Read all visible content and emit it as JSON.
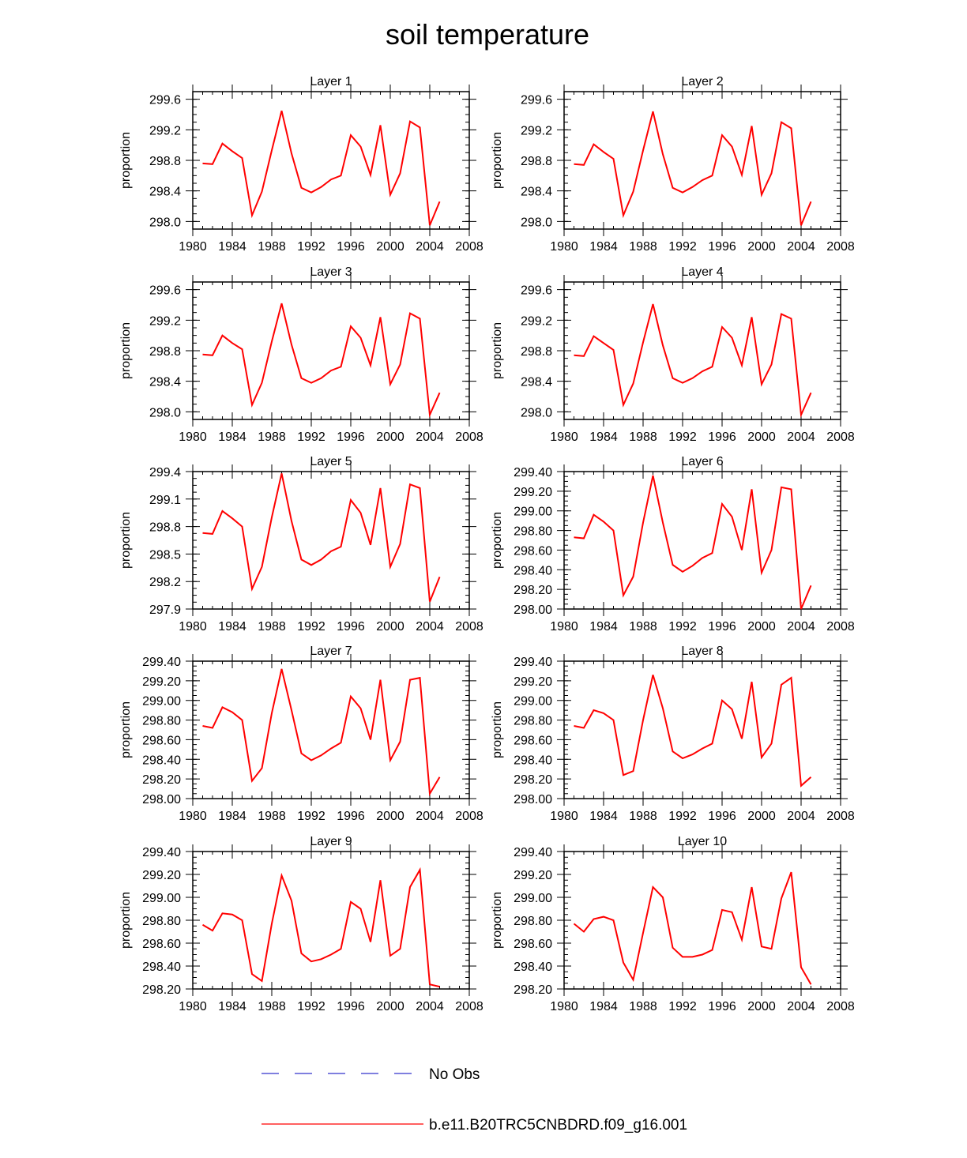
{
  "title": "soil temperature",
  "legend": [
    {
      "label": "No Obs",
      "color": "#3333cc",
      "style": "dashed"
    },
    {
      "label": "b.e11.B20TRC5CNBDRD.f09_g16.001",
      "color": "#ff0000",
      "style": "solid"
    }
  ],
  "series_color": "#ff0000",
  "chart_data": [
    {
      "type": "line",
      "title": "Layer 1",
      "ylabel": "proportion",
      "xlim": [
        1980,
        2008
      ],
      "xticks": [
        "1980",
        "1984",
        "1988",
        "1992",
        "1996",
        "2000",
        "2004",
        "2008"
      ],
      "ylim": [
        297.9,
        299.7
      ],
      "yticks": [
        "298.0",
        "298.4",
        "298.8",
        "299.2",
        "299.6"
      ],
      "x": [
        1981,
        1982,
        1983,
        1984,
        1985,
        1986,
        1987,
        1988,
        1989,
        1990,
        1991,
        1992,
        1993,
        1994,
        1995,
        1996,
        1997,
        1998,
        1999,
        2000,
        2001,
        2002,
        2003,
        2004,
        2005
      ],
      "values": [
        298.76,
        298.75,
        299.02,
        298.92,
        298.83,
        298.08,
        298.39,
        298.93,
        299.45,
        298.89,
        298.44,
        298.38,
        298.45,
        298.55,
        298.6,
        299.13,
        298.98,
        298.61,
        299.26,
        298.35,
        298.63,
        299.31,
        299.23,
        297.95,
        298.26
      ]
    },
    {
      "type": "line",
      "title": "Layer 2",
      "ylabel": "proportion",
      "xlim": [
        1980,
        2008
      ],
      "xticks": [
        "1980",
        "1984",
        "1988",
        "1992",
        "1996",
        "2000",
        "2004",
        "2008"
      ],
      "ylim": [
        297.9,
        299.7
      ],
      "yticks": [
        "298.0",
        "298.4",
        "298.8",
        "299.2",
        "299.6"
      ],
      "x": [
        1981,
        1982,
        1983,
        1984,
        1985,
        1986,
        1987,
        1988,
        1989,
        1990,
        1991,
        1992,
        1993,
        1994,
        1995,
        1996,
        1997,
        1998,
        1999,
        2000,
        2001,
        2002,
        2003,
        2004,
        2005
      ],
      "values": [
        298.75,
        298.74,
        299.01,
        298.91,
        298.82,
        298.08,
        298.39,
        298.93,
        299.44,
        298.88,
        298.44,
        298.38,
        298.45,
        298.54,
        298.6,
        299.13,
        298.98,
        298.61,
        299.25,
        298.35,
        298.63,
        299.3,
        299.22,
        297.95,
        298.26
      ]
    },
    {
      "type": "line",
      "title": "Layer 3",
      "ylabel": "proportion",
      "xlim": [
        1980,
        2008
      ],
      "xticks": [
        "1980",
        "1984",
        "1988",
        "1992",
        "1996",
        "2000",
        "2004",
        "2008"
      ],
      "ylim": [
        297.9,
        299.7
      ],
      "yticks": [
        "298.0",
        "298.4",
        "298.8",
        "299.2",
        "299.6"
      ],
      "x": [
        1981,
        1982,
        1983,
        1984,
        1985,
        1986,
        1987,
        1988,
        1989,
        1990,
        1991,
        1992,
        1993,
        1994,
        1995,
        1996,
        1997,
        1998,
        1999,
        2000,
        2001,
        2002,
        2003,
        2004,
        2005
      ],
      "values": [
        298.75,
        298.74,
        299.0,
        298.9,
        298.82,
        298.09,
        298.38,
        298.92,
        299.42,
        298.88,
        298.44,
        298.38,
        298.44,
        298.54,
        298.59,
        299.12,
        298.97,
        298.61,
        299.24,
        298.36,
        298.62,
        299.29,
        299.22,
        297.96,
        298.25
      ]
    },
    {
      "type": "line",
      "title": "Layer 4",
      "ylabel": "proportion",
      "xlim": [
        1980,
        2008
      ],
      "xticks": [
        "1980",
        "1984",
        "1988",
        "1992",
        "1996",
        "2000",
        "2004",
        "2008"
      ],
      "ylim": [
        297.9,
        299.7
      ],
      "yticks": [
        "298.0",
        "298.4",
        "298.8",
        "299.2",
        "299.6"
      ],
      "x": [
        1981,
        1982,
        1983,
        1984,
        1985,
        1986,
        1987,
        1988,
        1989,
        1990,
        1991,
        1992,
        1993,
        1994,
        1995,
        1996,
        1997,
        1998,
        1999,
        2000,
        2001,
        2002,
        2003,
        2004,
        2005
      ],
      "values": [
        298.74,
        298.73,
        298.99,
        298.9,
        298.81,
        298.09,
        298.37,
        298.91,
        299.41,
        298.87,
        298.44,
        298.38,
        298.44,
        298.53,
        298.59,
        299.11,
        298.97,
        298.61,
        299.24,
        298.36,
        298.62,
        299.28,
        299.22,
        297.96,
        298.25
      ]
    },
    {
      "type": "line",
      "title": "Layer 5",
      "ylabel": "proportion",
      "xlim": [
        1980,
        2008
      ],
      "xticks": [
        "1980",
        "1984",
        "1988",
        "1992",
        "1996",
        "2000",
        "2004",
        "2008"
      ],
      "ylim": [
        297.9,
        299.4
      ],
      "yticks": [
        "297.9",
        "298.2",
        "298.5",
        "298.8",
        "299.1",
        "299.4"
      ],
      "x": [
        1981,
        1982,
        1983,
        1984,
        1985,
        1986,
        1987,
        1988,
        1989,
        1990,
        1991,
        1992,
        1993,
        1994,
        1995,
        1996,
        1997,
        1998,
        1999,
        2000,
        2001,
        2002,
        2003,
        2004,
        2005
      ],
      "values": [
        298.73,
        298.72,
        298.97,
        298.89,
        298.8,
        298.12,
        298.36,
        298.9,
        299.38,
        298.86,
        298.44,
        298.38,
        298.44,
        298.53,
        298.58,
        299.09,
        298.95,
        298.6,
        299.22,
        298.36,
        298.61,
        299.26,
        299.22,
        297.98,
        298.25
      ]
    },
    {
      "type": "line",
      "title": "Layer 6",
      "ylabel": "proportion",
      "xlim": [
        1980,
        2008
      ],
      "xticks": [
        "1980",
        "1984",
        "1988",
        "1992",
        "1996",
        "2000",
        "2004",
        "2008"
      ],
      "ylim": [
        298.0,
        299.4
      ],
      "yticks": [
        "298.00",
        "298.20",
        "298.40",
        "298.60",
        "298.80",
        "299.00",
        "299.20",
        "299.40"
      ],
      "x": [
        1981,
        1982,
        1983,
        1984,
        1985,
        1986,
        1987,
        1988,
        1989,
        1990,
        1991,
        1992,
        1993,
        1994,
        1995,
        1996,
        1997,
        1998,
        1999,
        2000,
        2001,
        2002,
        2003,
        2004,
        2005
      ],
      "values": [
        298.73,
        298.72,
        298.96,
        298.89,
        298.8,
        298.14,
        298.33,
        298.88,
        299.36,
        298.88,
        298.45,
        298.38,
        298.44,
        298.52,
        298.57,
        299.07,
        298.94,
        298.6,
        299.22,
        298.37,
        298.6,
        299.24,
        299.22,
        298.0,
        298.24
      ]
    },
    {
      "type": "line",
      "title": "Layer 7",
      "ylabel": "proportion",
      "xlim": [
        1980,
        2008
      ],
      "xticks": [
        "1980",
        "1984",
        "1988",
        "1992",
        "1996",
        "2000",
        "2004",
        "2008"
      ],
      "ylim": [
        298.0,
        299.4
      ],
      "yticks": [
        "298.00",
        "298.20",
        "298.40",
        "298.60",
        "298.80",
        "299.00",
        "299.20",
        "299.40"
      ],
      "x": [
        1981,
        1982,
        1983,
        1984,
        1985,
        1986,
        1987,
        1988,
        1989,
        1990,
        1991,
        1992,
        1993,
        1994,
        1995,
        1996,
        1997,
        1998,
        1999,
        2000,
        2001,
        2002,
        2003,
        2004,
        2005
      ],
      "values": [
        298.74,
        298.72,
        298.93,
        298.88,
        298.8,
        298.18,
        298.31,
        298.87,
        299.32,
        298.9,
        298.46,
        298.39,
        298.44,
        298.51,
        298.57,
        299.04,
        298.92,
        298.6,
        299.21,
        298.39,
        298.58,
        299.21,
        299.23,
        298.05,
        298.22
      ]
    },
    {
      "type": "line",
      "title": "Layer 8",
      "ylabel": "proportion",
      "xlim": [
        1980,
        2008
      ],
      "xticks": [
        "1980",
        "1984",
        "1988",
        "1992",
        "1996",
        "2000",
        "2004",
        "2008"
      ],
      "ylim": [
        298.0,
        299.4
      ],
      "yticks": [
        "298.00",
        "298.20",
        "298.40",
        "298.60",
        "298.80",
        "299.00",
        "299.20",
        "299.40"
      ],
      "x": [
        1981,
        1982,
        1983,
        1984,
        1985,
        1986,
        1987,
        1988,
        1989,
        1990,
        1991,
        1992,
        1993,
        1994,
        1995,
        1996,
        1997,
        1998,
        1999,
        2000,
        2001,
        2002,
        2003,
        2004,
        2005
      ],
      "values": [
        298.74,
        298.72,
        298.9,
        298.87,
        298.8,
        298.24,
        298.28,
        298.8,
        299.26,
        298.92,
        298.48,
        298.41,
        298.45,
        298.51,
        298.56,
        299.0,
        298.91,
        298.61,
        299.19,
        298.42,
        298.56,
        299.16,
        299.23,
        298.13,
        298.22
      ]
    },
    {
      "type": "line",
      "title": "Layer 9",
      "ylabel": "proportion",
      "xlim": [
        1980,
        2008
      ],
      "xticks": [
        "1980",
        "1984",
        "1988",
        "1992",
        "1996",
        "2000",
        "2004",
        "2008"
      ],
      "ylim": [
        298.2,
        299.4
      ],
      "yticks": [
        "298.20",
        "298.40",
        "298.60",
        "298.80",
        "299.00",
        "299.20",
        "299.40"
      ],
      "x": [
        1981,
        1982,
        1983,
        1984,
        1985,
        1986,
        1987,
        1988,
        1989,
        1990,
        1991,
        1992,
        1993,
        1994,
        1995,
        1996,
        1997,
        1998,
        1999,
        2000,
        2001,
        2002,
        2003,
        2004,
        2005
      ],
      "values": [
        298.76,
        298.71,
        298.86,
        298.85,
        298.8,
        298.33,
        298.27,
        298.77,
        299.19,
        298.97,
        298.51,
        298.44,
        298.46,
        298.5,
        298.55,
        298.96,
        298.9,
        298.61,
        299.15,
        298.49,
        298.55,
        299.09,
        299.24,
        298.24,
        298.22
      ]
    },
    {
      "type": "line",
      "title": "Layer 10",
      "ylabel": "proportion",
      "xlim": [
        1980,
        2008
      ],
      "xticks": [
        "1980",
        "1984",
        "1988",
        "1992",
        "1996",
        "2000",
        "2004",
        "2008"
      ],
      "ylim": [
        298.2,
        299.4
      ],
      "yticks": [
        "298.20",
        "298.40",
        "298.60",
        "298.80",
        "299.00",
        "299.20",
        "299.40"
      ],
      "x": [
        1981,
        1982,
        1983,
        1984,
        1985,
        1986,
        1987,
        1988,
        1989,
        1990,
        1991,
        1992,
        1993,
        1994,
        1995,
        1996,
        1997,
        1998,
        1999,
        2000,
        2001,
        2002,
        2003,
        2004,
        2005
      ],
      "values": [
        298.77,
        298.7,
        298.81,
        298.83,
        298.8,
        298.43,
        298.28,
        298.69,
        299.09,
        299.0,
        298.56,
        298.48,
        298.48,
        298.5,
        298.54,
        298.89,
        298.87,
        298.63,
        299.09,
        298.57,
        298.55,
        298.99,
        299.22,
        298.39,
        298.24
      ]
    }
  ]
}
